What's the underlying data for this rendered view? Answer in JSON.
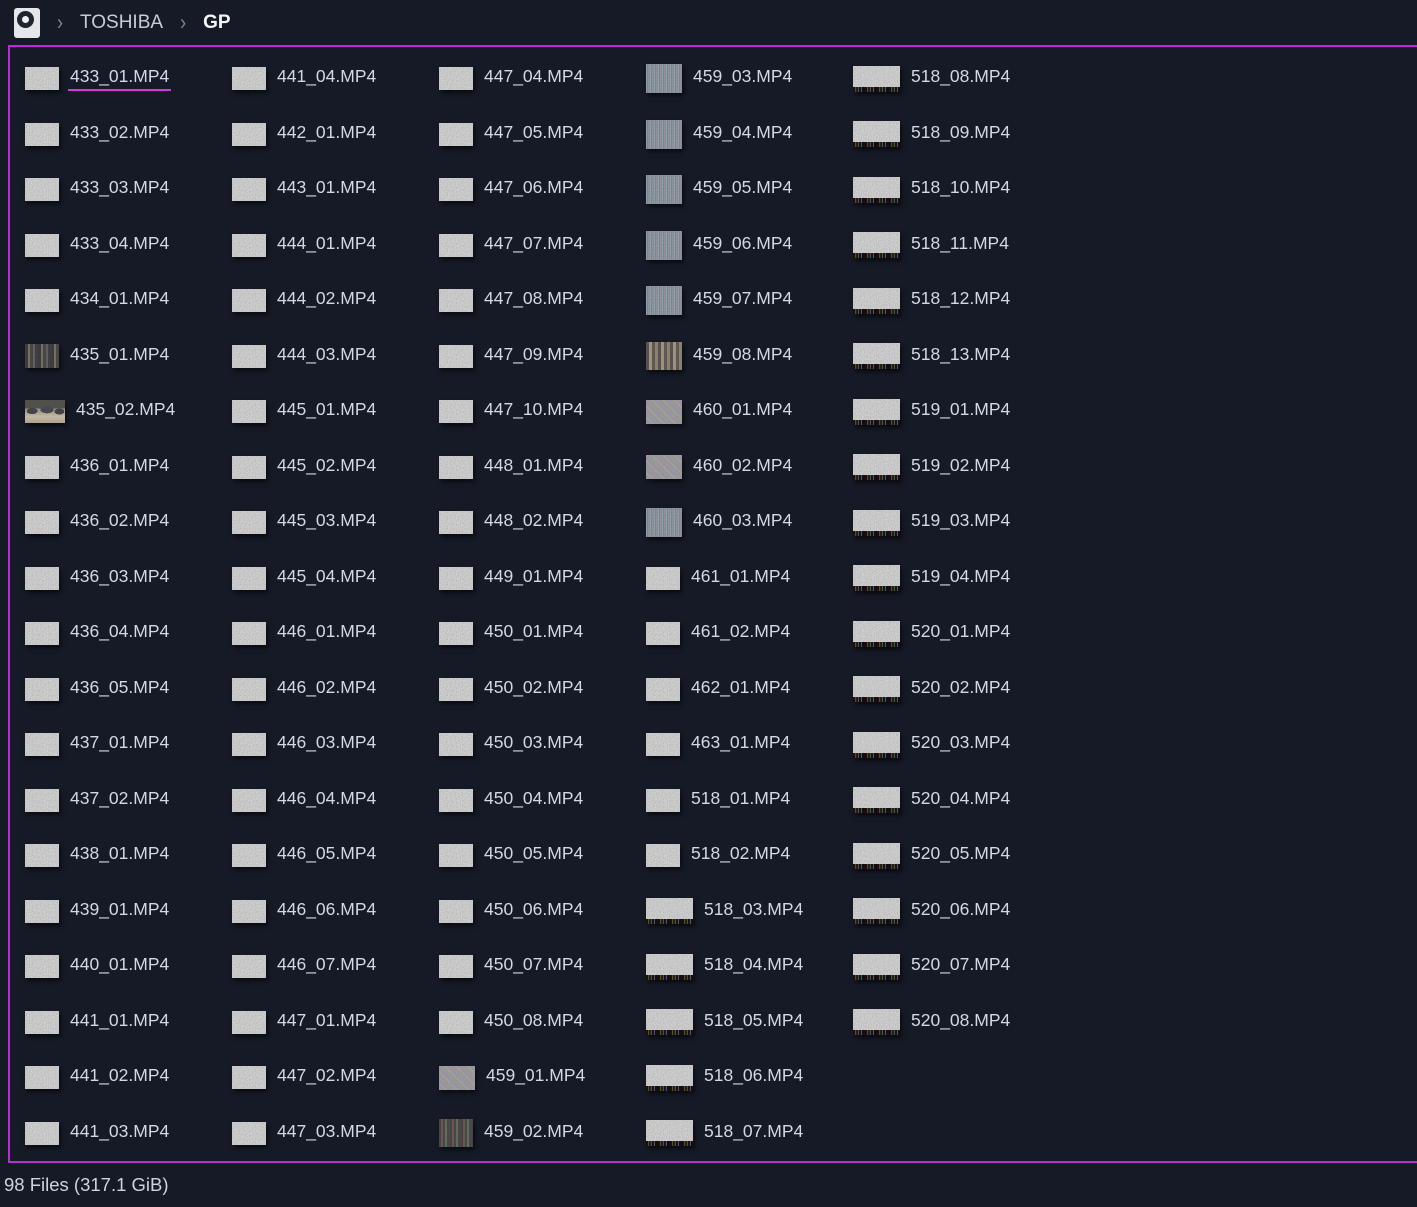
{
  "app": {
    "background": "#161a26",
    "accent": "#bf2ad8",
    "icons": {
      "app_icon": "camera-lens-drive-icon",
      "separator_glyph": "›"
    }
  },
  "breadcrumb": {
    "sep1": "›",
    "drive": "TOSHIBA",
    "sep2": "›",
    "folder": "GP"
  },
  "selection": {
    "selected_file": "433_01.MP4"
  },
  "status_bar": {
    "text": "98 Files (317.1 GiB)"
  },
  "grid": {
    "flow": "column-major",
    "rows_per_column": 20,
    "columns": 5
  },
  "files": [
    {
      "name": "433_01.MP4",
      "variant": "gray"
    },
    {
      "name": "433_02.MP4",
      "variant": "gray"
    },
    {
      "name": "433_03.MP4",
      "variant": "gray"
    },
    {
      "name": "433_04.MP4",
      "variant": "gray"
    },
    {
      "name": "434_01.MP4",
      "variant": "gray"
    },
    {
      "name": "435_01.MP4",
      "variant": "darkbars"
    },
    {
      "name": "435_02.MP4",
      "variant": "scene"
    },
    {
      "name": "436_01.MP4",
      "variant": "gray"
    },
    {
      "name": "436_02.MP4",
      "variant": "gray"
    },
    {
      "name": "436_03.MP4",
      "variant": "gray"
    },
    {
      "name": "436_04.MP4",
      "variant": "gray"
    },
    {
      "name": "436_05.MP4",
      "variant": "gray"
    },
    {
      "name": "437_01.MP4",
      "variant": "gray"
    },
    {
      "name": "437_02.MP4",
      "variant": "gray"
    },
    {
      "name": "438_01.MP4",
      "variant": "gray"
    },
    {
      "name": "439_01.MP4",
      "variant": "gray"
    },
    {
      "name": "440_01.MP4",
      "variant": "gray"
    },
    {
      "name": "441_01.MP4",
      "variant": "gray"
    },
    {
      "name": "441_02.MP4",
      "variant": "gray"
    },
    {
      "name": "441_03.MP4",
      "variant": "gray"
    },
    {
      "name": "441_04.MP4",
      "variant": "gray"
    },
    {
      "name": "442_01.MP4",
      "variant": "gray"
    },
    {
      "name": "443_01.MP4",
      "variant": "gray"
    },
    {
      "name": "444_01.MP4",
      "variant": "gray"
    },
    {
      "name": "444_02.MP4",
      "variant": "gray"
    },
    {
      "name": "444_03.MP4",
      "variant": "gray"
    },
    {
      "name": "445_01.MP4",
      "variant": "gray"
    },
    {
      "name": "445_02.MP4",
      "variant": "gray"
    },
    {
      "name": "445_03.MP4",
      "variant": "gray"
    },
    {
      "name": "445_04.MP4",
      "variant": "gray"
    },
    {
      "name": "446_01.MP4",
      "variant": "gray"
    },
    {
      "name": "446_02.MP4",
      "variant": "gray"
    },
    {
      "name": "446_03.MP4",
      "variant": "gray"
    },
    {
      "name": "446_04.MP4",
      "variant": "gray"
    },
    {
      "name": "446_05.MP4",
      "variant": "gray"
    },
    {
      "name": "446_06.MP4",
      "variant": "gray"
    },
    {
      "name": "446_07.MP4",
      "variant": "gray"
    },
    {
      "name": "447_01.MP4",
      "variant": "gray"
    },
    {
      "name": "447_02.MP4",
      "variant": "gray"
    },
    {
      "name": "447_03.MP4",
      "variant": "gray"
    },
    {
      "name": "447_04.MP4",
      "variant": "gray"
    },
    {
      "name": "447_05.MP4",
      "variant": "gray"
    },
    {
      "name": "447_06.MP4",
      "variant": "gray"
    },
    {
      "name": "447_07.MP4",
      "variant": "gray"
    },
    {
      "name": "447_08.MP4",
      "variant": "gray"
    },
    {
      "name": "447_09.MP4",
      "variant": "gray"
    },
    {
      "name": "447_10.MP4",
      "variant": "gray"
    },
    {
      "name": "448_01.MP4",
      "variant": "gray"
    },
    {
      "name": "448_02.MP4",
      "variant": "gray"
    },
    {
      "name": "449_01.MP4",
      "variant": "gray"
    },
    {
      "name": "450_01.MP4",
      "variant": "gray"
    },
    {
      "name": "450_02.MP4",
      "variant": "gray"
    },
    {
      "name": "450_03.MP4",
      "variant": "gray"
    },
    {
      "name": "450_04.MP4",
      "variant": "gray"
    },
    {
      "name": "450_05.MP4",
      "variant": "gray"
    },
    {
      "name": "450_06.MP4",
      "variant": "gray"
    },
    {
      "name": "450_07.MP4",
      "variant": "gray"
    },
    {
      "name": "450_08.MP4",
      "variant": "gray"
    },
    {
      "name": "459_01.MP4",
      "variant": "weave"
    },
    {
      "name": "459_02.MP4",
      "variant": "stripesRG"
    },
    {
      "name": "459_03.MP4",
      "variant": "colorGrid"
    },
    {
      "name": "459_04.MP4",
      "variant": "colorGrid"
    },
    {
      "name": "459_05.MP4",
      "variant": "colorGrid"
    },
    {
      "name": "459_06.MP4",
      "variant": "colorGrid"
    },
    {
      "name": "459_07.MP4",
      "variant": "colorGrid"
    },
    {
      "name": "459_08.MP4",
      "variant": "stripesTan"
    },
    {
      "name": "460_01.MP4",
      "variant": "weave"
    },
    {
      "name": "460_02.MP4",
      "variant": "weave"
    },
    {
      "name": "460_03.MP4",
      "variant": "colorGrid"
    },
    {
      "name": "461_01.MP4",
      "variant": "gray"
    },
    {
      "name": "461_02.MP4",
      "variant": "gray"
    },
    {
      "name": "462_01.MP4",
      "variant": "gray"
    },
    {
      "name": "463_01.MP4",
      "variant": "gray"
    },
    {
      "name": "518_01.MP4",
      "variant": "gray"
    },
    {
      "name": "518_02.MP4",
      "variant": "gray"
    },
    {
      "name": "518_03.MP4",
      "variant": "barsWide"
    },
    {
      "name": "518_04.MP4",
      "variant": "barsWide"
    },
    {
      "name": "518_05.MP4",
      "variant": "barsWide"
    },
    {
      "name": "518_06.MP4",
      "variant": "barsWide"
    },
    {
      "name": "518_07.MP4",
      "variant": "barsWide"
    },
    {
      "name": "518_08.MP4",
      "variant": "barsWide"
    },
    {
      "name": "518_09.MP4",
      "variant": "barsWide"
    },
    {
      "name": "518_10.MP4",
      "variant": "barsWide"
    },
    {
      "name": "518_11.MP4",
      "variant": "barsWide"
    },
    {
      "name": "518_12.MP4",
      "variant": "barsWide"
    },
    {
      "name": "518_13.MP4",
      "variant": "barsWide"
    },
    {
      "name": "519_01.MP4",
      "variant": "barsWide"
    },
    {
      "name": "519_02.MP4",
      "variant": "barsWide"
    },
    {
      "name": "519_03.MP4",
      "variant": "barsWide"
    },
    {
      "name": "519_04.MP4",
      "variant": "barsWide"
    },
    {
      "name": "520_01.MP4",
      "variant": "barsWide"
    },
    {
      "name": "520_02.MP4",
      "variant": "barsWide"
    },
    {
      "name": "520_03.MP4",
      "variant": "barsWide"
    },
    {
      "name": "520_04.MP4",
      "variant": "barsWide"
    },
    {
      "name": "520_05.MP4",
      "variant": "barsWide"
    },
    {
      "name": "520_06.MP4",
      "variant": "barsWide"
    },
    {
      "name": "520_07.MP4",
      "variant": "barsWide"
    },
    {
      "name": "520_08.MP4",
      "variant": "barsWide"
    }
  ]
}
